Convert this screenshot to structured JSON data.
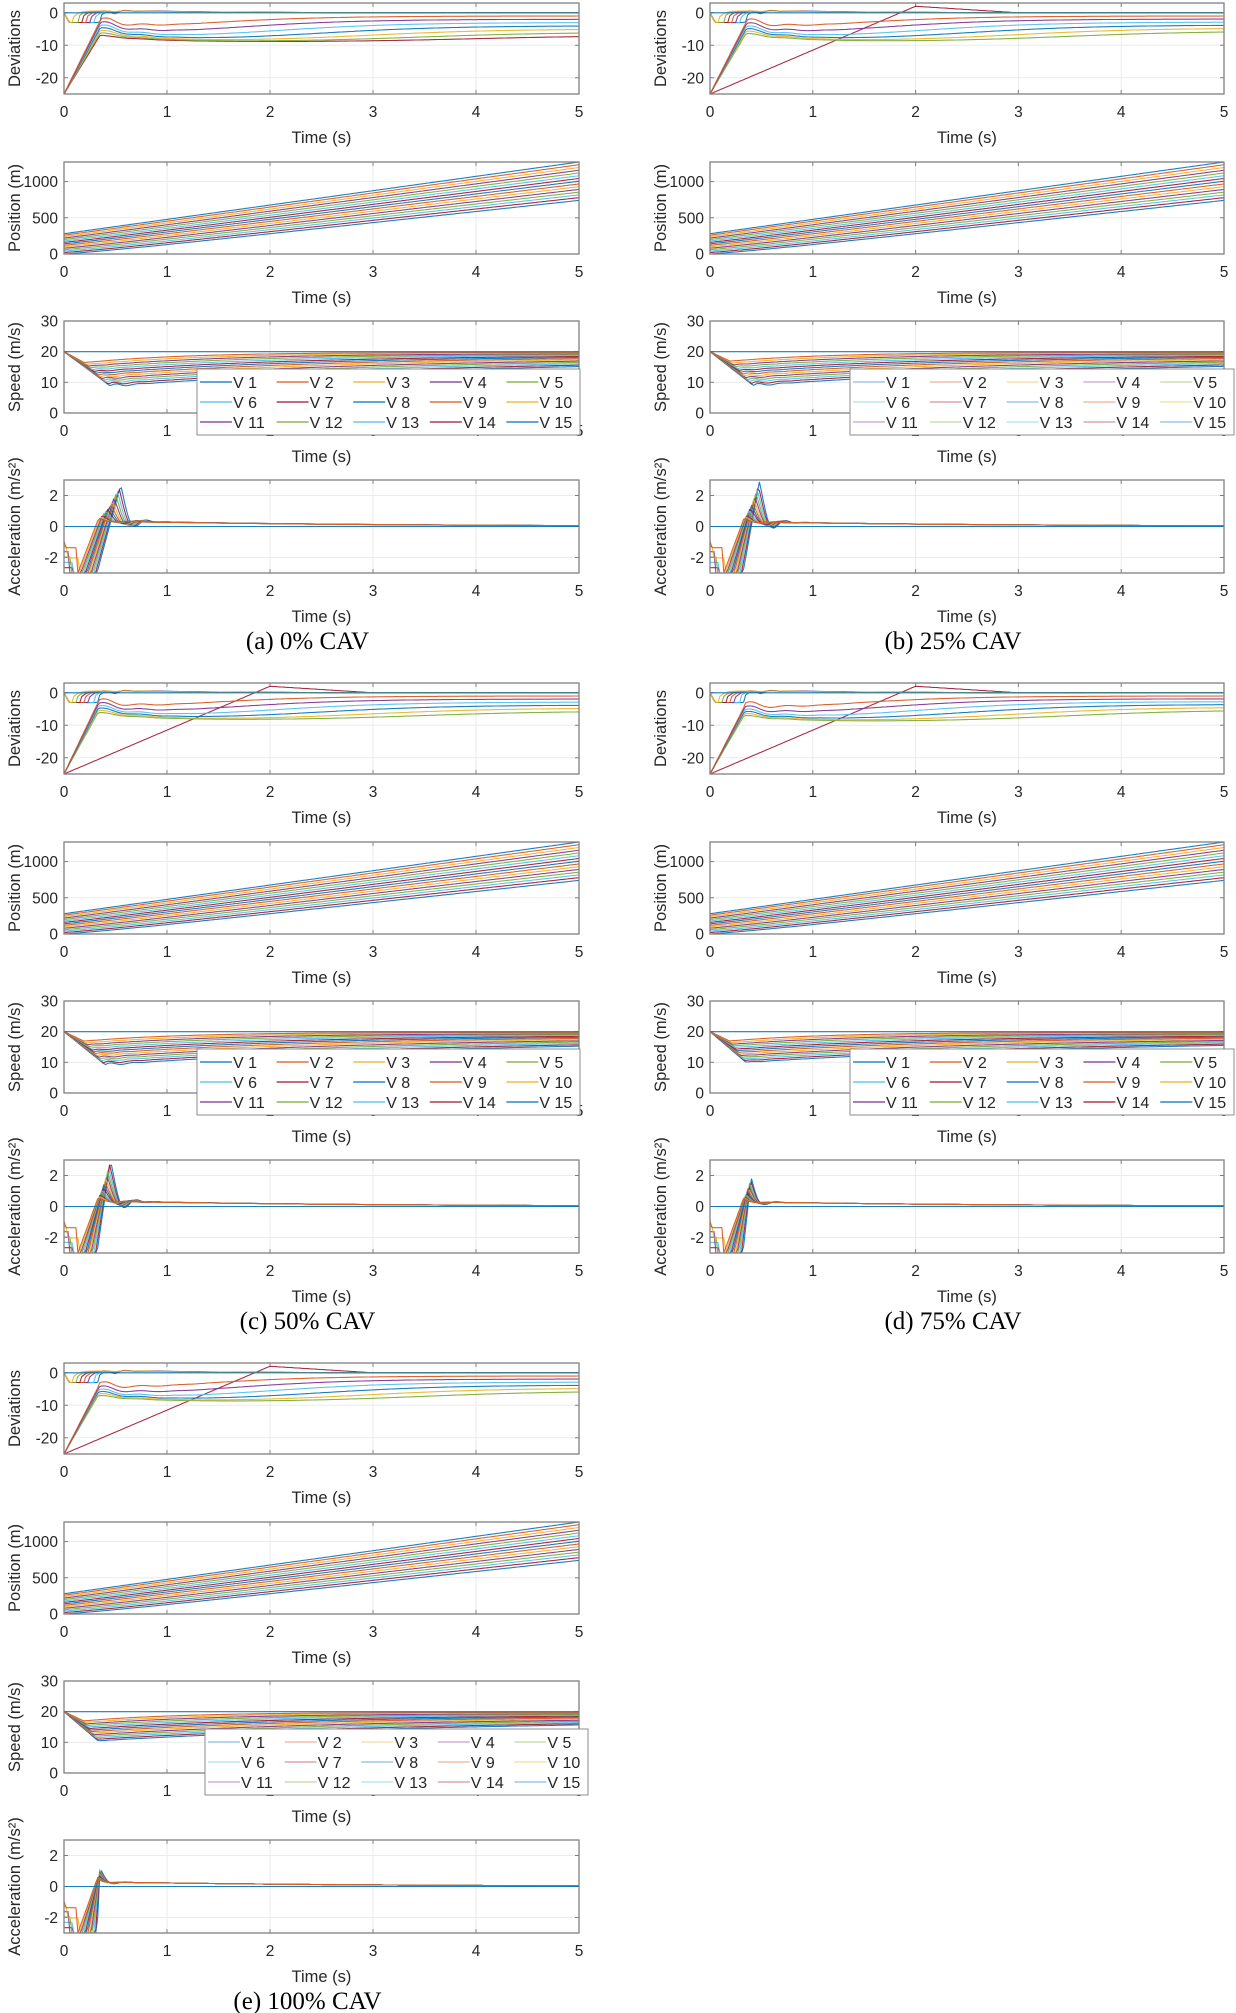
{
  "figure_title": "",
  "chart_data": [
    {
      "id": "a",
      "caption": "(a) 0% CAV",
      "cav_percent": 0,
      "type": "line",
      "n_vehicles": 15,
      "legend": {
        "entries": [
          "V 1",
          "V 2",
          "V 3",
          "V 4",
          "V 5",
          "V 6",
          "V 7",
          "V 8",
          "V 9",
          "V 10",
          "V 11",
          "V 12",
          "V 13",
          "V 14",
          "V 15"
        ],
        "columns": 5,
        "placement": "speed-plot lower-right",
        "faded": false
      },
      "subplots": [
        {
          "name": "deviations",
          "ylabel": "Deviations",
          "xlabel": "Time (s)",
          "xlim": [
            0,
            5
          ],
          "ylim": [
            -25,
            3
          ],
          "xticks": [
            0,
            1,
            2,
            3,
            4,
            5
          ],
          "yticks": [
            -20,
            -10,
            0
          ],
          "grid": true,
          "model": {
            "ramp_end": 0.35,
            "overshoot_peak": -2.5,
            "peak_time": 0.45,
            "settle_low": -9,
            "final_range": [
              -8,
              -1
            ],
            "upper_band": [
              -3,
              2
            ],
            "cav_linear_recovery": false
          }
        },
        {
          "name": "position",
          "ylabel": "Position (m)",
          "xlabel": "Time (s)",
          "xlim": [
            0,
            5
          ],
          "ylim": [
            0,
            1270
          ],
          "xticks": [
            0,
            1,
            2,
            3,
            4,
            5
          ],
          "yticks": [
            0,
            500,
            1000
          ],
          "grid": true,
          "model": {
            "initial_lead": 280,
            "initial_last": 0,
            "final_lead": 1270,
            "final_last": 740
          }
        },
        {
          "name": "speed",
          "ylabel": "Speed (m/s)",
          "xlabel": "Time (s)",
          "xlim": [
            0,
            5
          ],
          "ylim": [
            0,
            30
          ],
          "xticks": [
            0,
            1,
            2,
            3,
            4,
            5
          ],
          "yticks": [
            0,
            10,
            20,
            30
          ],
          "grid": true,
          "model": {
            "v0": 20,
            "min_speed_first": 17,
            "min_speed_last": 8.8,
            "min_time_last": 0.45,
            "final_speed_range": [
              17.5,
              20
            ],
            "oscillation": 0.8
          }
        },
        {
          "name": "acceleration",
          "ylabel": "Acceleration (m/s²)",
          "xlabel": "Time (s)",
          "xlim": [
            0,
            5
          ],
          "ylim": [
            -3,
            3
          ],
          "xticks": [
            0,
            1,
            2,
            3,
            4,
            5
          ],
          "yticks": [
            -2,
            0,
            2
          ],
          "grid": true,
          "model": {
            "min_accel": -3,
            "peak_accel": 2.7,
            "peak_time": 0.55,
            "second_dip": -1.5,
            "second_peak": 1.2,
            "steady": 0.35
          }
        }
      ]
    },
    {
      "id": "b",
      "caption": "(b) 25% CAV",
      "cav_percent": 25,
      "type": "line",
      "n_vehicles": 15,
      "legend": {
        "entries": [
          "V 1",
          "V 2",
          "V 3",
          "V 4",
          "V 5",
          "V 6",
          "V 7",
          "V 8",
          "V 9",
          "V 10",
          "V 11",
          "V 12",
          "V 13",
          "V 14",
          "V 15"
        ],
        "columns": 5,
        "placement": "speed-plot lower-right",
        "faded": true
      },
      "subplots": [
        {
          "name": "deviations",
          "ylabel": "Deviations",
          "xlabel": "Time (s)",
          "xlim": [
            0,
            5
          ],
          "ylim": [
            -25,
            3
          ],
          "xticks": [
            0,
            1,
            2,
            3,
            4,
            5
          ],
          "yticks": [
            -20,
            -10,
            0
          ],
          "grid": true,
          "model": {
            "ramp_end": 0.35,
            "overshoot_peak": -3,
            "peak_time": 0.42,
            "settle_low": -9,
            "final_range": [
              -7.5,
              -1
            ],
            "upper_band": [
              -3,
              2
            ],
            "cav_linear_recovery": true
          }
        },
        {
          "name": "position",
          "ylabel": "Position (m)",
          "xlabel": "Time (s)",
          "xlim": [
            0,
            5
          ],
          "ylim": [
            0,
            1270
          ],
          "xticks": [
            0,
            1,
            2,
            3,
            4,
            5
          ],
          "yticks": [
            0,
            500,
            1000
          ],
          "grid": true,
          "model": {
            "initial_lead": 280,
            "initial_last": 0,
            "final_lead": 1270,
            "final_last": 740
          }
        },
        {
          "name": "speed",
          "ylabel": "Speed (m/s)",
          "xlabel": "Time (s)",
          "xlim": [
            0,
            5
          ],
          "ylim": [
            0,
            30
          ],
          "xticks": [
            0,
            1,
            2,
            3,
            4,
            5
          ],
          "yticks": [
            0,
            10,
            20,
            30
          ],
          "grid": true,
          "model": {
            "v0": 20,
            "min_speed_first": 17.5,
            "min_speed_last": 9,
            "min_time_last": 0.42,
            "final_speed_range": [
              17.5,
              20
            ],
            "oscillation": 0.7
          }
        },
        {
          "name": "acceleration",
          "ylabel": "Acceleration (m/s²)",
          "xlabel": "Time (s)",
          "xlim": [
            0,
            5
          ],
          "ylim": [
            -3,
            3
          ],
          "xticks": [
            0,
            1,
            2,
            3,
            4,
            5
          ],
          "yticks": [
            -2,
            0,
            2
          ],
          "grid": true,
          "model": {
            "min_accel": -3,
            "peak_accel": 2.9,
            "peak_time": 0.48,
            "second_dip": -2.0,
            "second_peak": 1.4,
            "steady": 0.3
          }
        }
      ]
    },
    {
      "id": "c",
      "caption": "(c) 50% CAV",
      "cav_percent": 50,
      "type": "line",
      "n_vehicles": 15,
      "legend": {
        "entries": [
          "V 1",
          "V 2",
          "V 3",
          "V 4",
          "V 5",
          "V 6",
          "V 7",
          "V 8",
          "V 9",
          "V 10",
          "V 11",
          "V 12",
          "V 13",
          "V 14",
          "V 15"
        ],
        "columns": 5,
        "placement": "speed-plot lower-right",
        "faded": false
      },
      "subplots": [
        {
          "name": "deviations",
          "ylabel": "Deviations",
          "xlabel": "Time (s)",
          "xlim": [
            0,
            5
          ],
          "ylim": [
            -25,
            3
          ],
          "xticks": [
            0,
            1,
            2,
            3,
            4,
            5
          ],
          "yticks": [
            -20,
            -10,
            0
          ],
          "grid": true,
          "model": {
            "ramp_end": 0.33,
            "overshoot_peak": -3,
            "peak_time": 0.4,
            "settle_low": -8.5,
            "final_range": [
              -7.5,
              -1
            ],
            "upper_band": [
              -3,
              2
            ],
            "cav_linear_recovery": true
          }
        },
        {
          "name": "position",
          "ylabel": "Position (m)",
          "xlabel": "Time (s)",
          "xlim": [
            0,
            5
          ],
          "ylim": [
            0,
            1270
          ],
          "xticks": [
            0,
            1,
            2,
            3,
            4,
            5
          ],
          "yticks": [
            0,
            500,
            1000
          ],
          "grid": true,
          "model": {
            "initial_lead": 280,
            "initial_last": 0,
            "final_lead": 1270,
            "final_last": 740
          }
        },
        {
          "name": "speed",
          "ylabel": "Speed (m/s)",
          "xlabel": "Time (s)",
          "xlim": [
            0,
            5
          ],
          "ylim": [
            0,
            30
          ],
          "xticks": [
            0,
            1,
            2,
            3,
            4,
            5
          ],
          "yticks": [
            0,
            10,
            20,
            30
          ],
          "grid": true,
          "model": {
            "v0": 20,
            "min_speed_first": 17.5,
            "min_speed_last": 9.2,
            "min_time_last": 0.4,
            "final_speed_range": [
              17.5,
              20
            ],
            "oscillation": 0.7
          }
        },
        {
          "name": "acceleration",
          "ylabel": "Acceleration (m/s²)",
          "xlabel": "Time (s)",
          "xlim": [
            0,
            5
          ],
          "ylim": [
            -3,
            3
          ],
          "xticks": [
            0,
            1,
            2,
            3,
            4,
            5
          ],
          "yticks": [
            -2,
            0,
            2
          ],
          "grid": true,
          "model": {
            "min_accel": -3,
            "peak_accel": 3.0,
            "peak_time": 0.45,
            "second_dip": -2.2,
            "second_peak": 1.5,
            "steady": 0.35
          }
        }
      ]
    },
    {
      "id": "d",
      "caption": "(d) 75% CAV",
      "cav_percent": 75,
      "type": "line",
      "n_vehicles": 15,
      "legend": {
        "entries": [
          "V 1",
          "V 2",
          "V 3",
          "V 4",
          "V 5",
          "V 6",
          "V 7",
          "V 8",
          "V 9",
          "V 10",
          "V 11",
          "V 12",
          "V 13",
          "V 14",
          "V 15"
        ],
        "columns": 5,
        "placement": "speed-plot lower-right",
        "faded": false
      },
      "subplots": [
        {
          "name": "deviations",
          "ylabel": "Deviations",
          "xlabel": "Time (s)",
          "xlim": [
            0,
            5
          ],
          "ylim": [
            -25,
            3
          ],
          "xticks": [
            0,
            1,
            2,
            3,
            4,
            5
          ],
          "yticks": [
            -20,
            -10,
            0
          ],
          "grid": true,
          "model": {
            "ramp_end": 0.33,
            "overshoot_peak": -4.5,
            "peak_time": 0.35,
            "settle_low": -9,
            "final_range": [
              -7,
              -1
            ],
            "upper_band": [
              -3,
              2
            ],
            "cav_linear_recovery": true
          }
        },
        {
          "name": "position",
          "ylabel": "Position (m)",
          "xlabel": "Time (s)",
          "xlim": [
            0,
            5
          ],
          "ylim": [
            0,
            1270
          ],
          "xticks": [
            0,
            1,
            2,
            3,
            4,
            5
          ],
          "yticks": [
            0,
            500,
            1000
          ],
          "grid": true,
          "model": {
            "initial_lead": 280,
            "initial_last": 0,
            "final_lead": 1270,
            "final_last": 740
          }
        },
        {
          "name": "speed",
          "ylabel": "Speed (m/s)",
          "xlabel": "Time (s)",
          "xlim": [
            0,
            5
          ],
          "ylim": [
            0,
            30
          ],
          "xticks": [
            0,
            1,
            2,
            3,
            4,
            5
          ],
          "yticks": [
            0,
            10,
            20,
            30
          ],
          "grid": true,
          "model": {
            "v0": 20,
            "min_speed_first": 17.5,
            "min_speed_last": 10,
            "min_time_last": 0.35,
            "final_speed_range": [
              17.5,
              20
            ],
            "oscillation": 0.2
          }
        },
        {
          "name": "acceleration",
          "ylabel": "Acceleration (m/s²)",
          "xlabel": "Time (s)",
          "xlim": [
            0,
            5
          ],
          "ylim": [
            -3,
            3
          ],
          "xticks": [
            0,
            1,
            2,
            3,
            4,
            5
          ],
          "yticks": [
            -2,
            0,
            2
          ],
          "grid": true,
          "model": {
            "min_accel": -3,
            "peak_accel": 1.9,
            "peak_time": 0.4,
            "second_dip": -0.2,
            "second_peak": 0.4,
            "steady": 0.3
          }
        }
      ]
    },
    {
      "id": "e",
      "caption": "(e) 100% CAV",
      "cav_percent": 100,
      "type": "line",
      "n_vehicles": 15,
      "legend": {
        "entries": [
          "V 1",
          "V 2",
          "V 3",
          "V 4",
          "V 5",
          "V 6",
          "V 7",
          "V 8",
          "V 9",
          "V 10",
          "V 11",
          "V 12",
          "V 13",
          "V 14",
          "V 15"
        ],
        "columns": 5,
        "placement": "speed-plot lower-right",
        "faded": true
      },
      "subplots": [
        {
          "name": "deviations",
          "ylabel": "Deviations",
          "xlabel": "Time (s)",
          "xlim": [
            0,
            5
          ],
          "ylim": [
            -25,
            3
          ],
          "xticks": [
            0,
            1,
            2,
            3,
            4,
            5
          ],
          "yticks": [
            -20,
            -10,
            0
          ],
          "grid": true,
          "model": {
            "ramp_end": 0.33,
            "overshoot_peak": -4.5,
            "peak_time": 0.34,
            "settle_low": -9,
            "final_range": [
              -7.5,
              -1
            ],
            "upper_band": [
              -3,
              2
            ],
            "cav_linear_recovery": true
          }
        },
        {
          "name": "position",
          "ylabel": "Position (m)",
          "xlabel": "Time (s)",
          "xlim": [
            0,
            5
          ],
          "ylim": [
            0,
            1270
          ],
          "xticks": [
            0,
            1,
            2,
            3,
            4,
            5
          ],
          "yticks": [
            0,
            500,
            1000
          ],
          "grid": true,
          "model": {
            "initial_lead": 280,
            "initial_last": 0,
            "final_lead": 1270,
            "final_last": 740
          }
        },
        {
          "name": "speed",
          "ylabel": "Speed (m/s)",
          "xlabel": "Time (s)",
          "xlim": [
            0,
            5
          ],
          "ylim": [
            0,
            30
          ],
          "xticks": [
            0,
            1,
            2,
            3,
            4,
            5
          ],
          "yticks": [
            0,
            10,
            20,
            30
          ],
          "grid": true,
          "model": {
            "v0": 20,
            "min_speed_first": 17.5,
            "min_speed_last": 10.5,
            "min_time_last": 0.33,
            "final_speed_range": [
              17.5,
              20
            ],
            "oscillation": 0.0
          }
        },
        {
          "name": "acceleration",
          "ylabel": "Acceleration (m/s²)",
          "xlabel": "Time (s)",
          "xlim": [
            0,
            5
          ],
          "ylim": [
            -3,
            3
          ],
          "xticks": [
            0,
            1,
            2,
            3,
            4,
            5
          ],
          "yticks": [
            -2,
            0,
            2
          ],
          "grid": true,
          "model": {
            "min_accel": -3,
            "peak_accel": 1.2,
            "peak_time": 0.35,
            "second_dip": 0.1,
            "second_peak": 0.3,
            "steady": 0.3
          }
        }
      ]
    }
  ],
  "series_colors": [
    "#0072BD",
    "#D95319",
    "#EDB120",
    "#7E2F8E",
    "#77AC30",
    "#4DBEEE",
    "#A2142F",
    "#0072BD",
    "#D95319",
    "#EDB120",
    "#7E2F8E",
    "#77AC30",
    "#4DBEEE",
    "#A2142F",
    "#0072BD"
  ],
  "axis_color": "#808080",
  "grid_color": "#ebebeb"
}
